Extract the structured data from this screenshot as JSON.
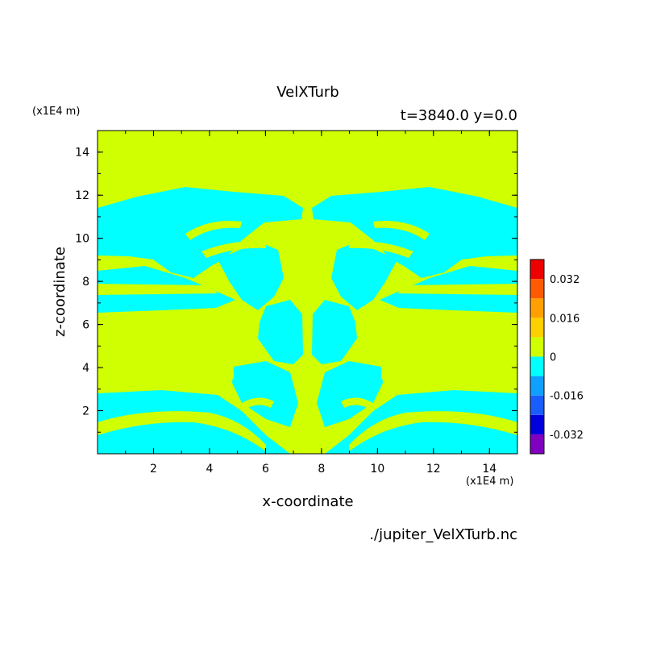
{
  "chart_data": {
    "type": "heatmap",
    "title": "VelXTurb",
    "subtitle": "t=3840.0 y=0.0",
    "xlabel": "x-coordinate",
    "ylabel": "z-coordinate",
    "x_unit": "(x1E4 m)",
    "y_unit": "(x1E4 m)",
    "source_file": "./jupiter_VelXTurb.nc",
    "xlim": [
      0,
      15
    ],
    "ylim": [
      0,
      15
    ],
    "x_ticks": [
      2,
      4,
      6,
      8,
      10,
      12,
      14
    ],
    "y_ticks": [
      2,
      4,
      6,
      8,
      10,
      12,
      14
    ],
    "colorbar": {
      "levels": [
        -0.04,
        -0.032,
        -0.024,
        -0.016,
        -0.008,
        0,
        0.008,
        0.016,
        0.024,
        0.032,
        0.04
      ],
      "colors": [
        "#7f00bf",
        "#0000dd",
        "#1a5dff",
        "#0fa0ff",
        "#00ffff",
        "#cfff00",
        "#ffd000",
        "#ffa000",
        "#ff5a00",
        "#ee0000",
        "#ffb3b3"
      ],
      "tick_labels": [
        "0.032",
        "0.016",
        "0",
        "-0.016",
        "-0.032"
      ],
      "tick_values": [
        0.032,
        0.016,
        0,
        -0.016,
        -0.032
      ]
    },
    "background_value_color": "#cfff00",
    "negative_value_color": "#00ffff"
  }
}
